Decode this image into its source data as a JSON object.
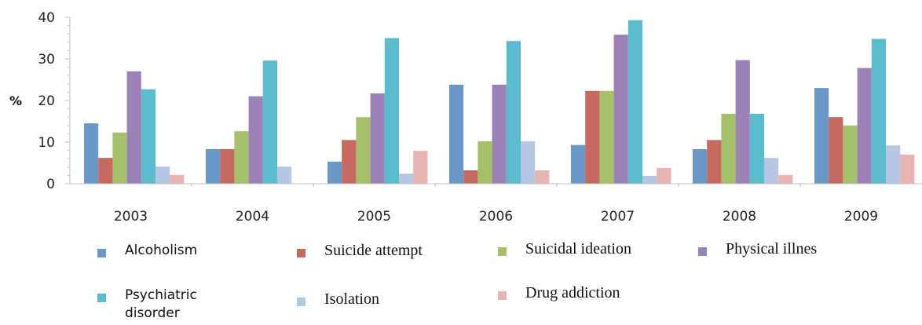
{
  "chart_data": {
    "type": "bar",
    "title": "",
    "xlabel": "",
    "ylabel": "%",
    "ylim": [
      0,
      40
    ],
    "yticks": [
      0,
      10,
      20,
      30,
      40
    ],
    "grid": false,
    "legend_position": "bottom",
    "categories": [
      "2003",
      "2004",
      "2005",
      "2006",
      "2007",
      "2008",
      "2009"
    ],
    "series": [
      {
        "name": "Alcoholism",
        "color": "#6b97c6",
        "values": [
          14.5,
          8.3,
          5.3,
          23.8,
          9.3,
          8.3,
          23
        ]
      },
      {
        "name": "Suicide attempt",
        "color": "#c8695f",
        "values": [
          6.2,
          8.3,
          10.5,
          3.2,
          22.3,
          10.5,
          16
        ]
      },
      {
        "name": "Suicidal ideation",
        "color": "#a5bf6b",
        "values": [
          12.3,
          12.6,
          16,
          10.2,
          22.3,
          16.8,
          14
        ]
      },
      {
        "name": "Physical illnes",
        "color": "#9a82b7",
        "values": [
          27,
          21,
          21.7,
          23.8,
          35.8,
          29.7,
          27.8
        ]
      },
      {
        "name": "Psychiatric disorder",
        "color": "#5bbccd",
        "values": [
          22.7,
          29.6,
          35,
          34.3,
          39.3,
          16.8,
          34.8
        ]
      },
      {
        "name": "Isolation",
        "color": "#b5c7e3",
        "values": [
          4.1,
          4.1,
          2.4,
          10.2,
          1.9,
          6.2,
          9.2
        ]
      },
      {
        "name": "Drug addiction",
        "color": "#e6b5b2",
        "values": [
          2.1,
          0,
          7.9,
          3.2,
          3.8,
          2.1,
          7
        ]
      }
    ]
  },
  "legend": {
    "items": [
      {
        "label": "Alcoholism",
        "color": "#6b97c6"
      },
      {
        "label": "Suicide attempt",
        "color": "#c8695f"
      },
      {
        "label": "Suicidal ideation",
        "color": "#a5bf6b"
      },
      {
        "label": "Physical illnes",
        "color": "#9a82b7"
      },
      {
        "label": "Psychiatric disorder",
        "color": "#5bbccd"
      },
      {
        "label": "Isolation",
        "color": "#b5c7e3"
      },
      {
        "label": "Drug addiction",
        "color": "#e6b5b2"
      }
    ]
  }
}
